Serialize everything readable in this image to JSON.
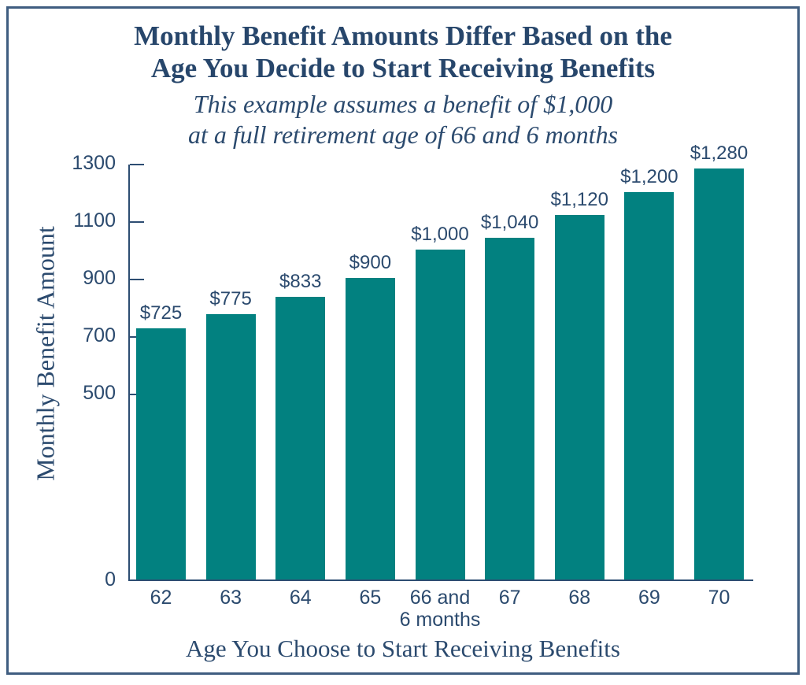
{
  "chart_data": {
    "type": "bar",
    "title_lines": [
      "Monthly Benefit Amounts Differ Based on the",
      "Age You Decide to Start Receiving Benefits"
    ],
    "subtitle_lines": [
      "This example assumes a benefit of $1,000",
      "at a full retirement age of 66 and 6 months"
    ],
    "ylabel": "Monthly Benefit Amount",
    "xlabel": "Age You Choose to Start Receiving Benefits",
    "categories": [
      "62",
      "63",
      "64",
      "65",
      "66 and\n6 months",
      "67",
      "68",
      "69",
      "70"
    ],
    "values": [
      725,
      775,
      833,
      900,
      1000,
      1040,
      1120,
      1200,
      1280
    ],
    "bar_labels": [
      "$725",
      "$775",
      "$833",
      "$900",
      "$1,000",
      "$1,040",
      "$1,120",
      "$1,200",
      "$1,280"
    ],
    "y_ticks": [
      0,
      500,
      700,
      900,
      1100,
      1300
    ],
    "ylim": [
      0,
      1300
    ],
    "grid": false,
    "legend": null,
    "colors": {
      "bar": "#028180",
      "text": "#2b4a6e",
      "title": "#27466b",
      "axis": "#2d4d72",
      "frame_border": "#3f5d80",
      "background": "#ffffff"
    }
  }
}
